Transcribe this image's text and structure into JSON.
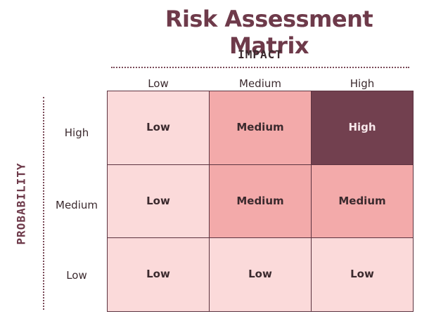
{
  "title": "Risk Assessment Matrix",
  "impact_label": "IMPACT",
  "probability_label": "PROBABILITY",
  "impact_columns": [
    "Low",
    "Medium",
    "High"
  ],
  "probability_rows": [
    "High",
    "Medium",
    "Low"
  ],
  "matrix": [
    [
      "Low",
      "Medium",
      "High"
    ],
    [
      "Low",
      "Medium",
      "Medium"
    ],
    [
      "Low",
      "Low",
      "Low"
    ]
  ],
  "colors": {
    "Low": "#fbdada",
    "Medium": "#f3aaaa",
    "High": "#72404f",
    "text_dark": "#3b2a2e",
    "text_light": "#f6e7ea",
    "accent": "#6e3a4a"
  }
}
